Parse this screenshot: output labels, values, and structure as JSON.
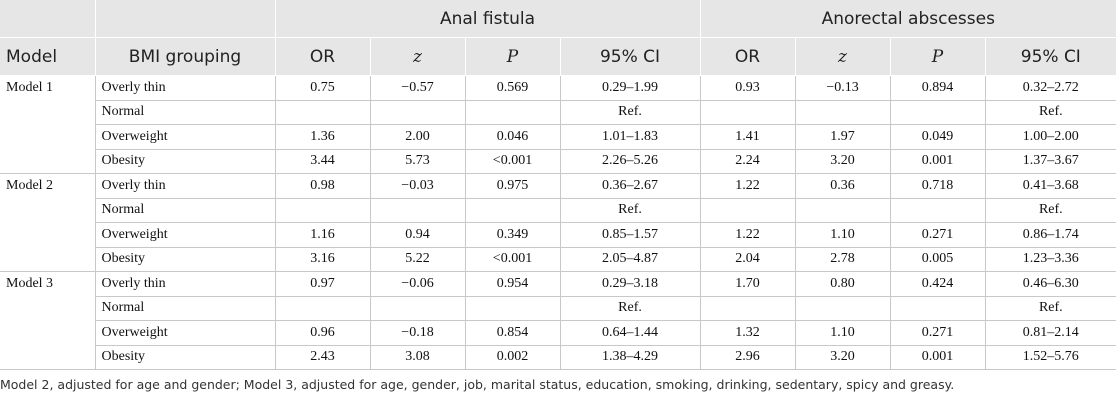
{
  "table": {
    "group_headers": [
      "Anal fistula",
      "Anorectal abscesses"
    ],
    "columns": [
      "Model",
      "BMI grouping",
      "OR",
      "z",
      "P",
      "95% CI",
      "OR",
      "z",
      "P",
      "95% CI"
    ],
    "models": [
      {
        "name": "Model 1",
        "rows": [
          {
            "group": "Overly thin",
            "fistula": [
              "0.75",
              "−0.57",
              "0.569",
              "0.29–1.99"
            ],
            "abscess": [
              "0.93",
              "−0.13",
              "0.894",
              "0.32–2.72"
            ]
          },
          {
            "group": "Normal",
            "fistula": [
              "Ref."
            ],
            "abscess": [
              "Ref."
            ]
          },
          {
            "group": "Overweight",
            "fistula": [
              "1.36",
              "2.00",
              "0.046",
              "1.01–1.83"
            ],
            "abscess": [
              "1.41",
              "1.97",
              "0.049",
              "1.00–2.00"
            ]
          },
          {
            "group": "Obesity",
            "fistula": [
              "3.44",
              "5.73",
              "<0.001",
              "2.26–5.26"
            ],
            "abscess": [
              "2.24",
              "3.20",
              "0.001",
              "1.37–3.67"
            ]
          }
        ]
      },
      {
        "name": "Model 2",
        "rows": [
          {
            "group": "Overly thin",
            "fistula": [
              "0.98",
              "−0.03",
              "0.975",
              "0.36–2.67"
            ],
            "abscess": [
              "1.22",
              "0.36",
              "0.718",
              "0.41–3.68"
            ]
          },
          {
            "group": "Normal",
            "fistula": [
              "Ref."
            ],
            "abscess": [
              "Ref."
            ]
          },
          {
            "group": "Overweight",
            "fistula": [
              "1.16",
              "0.94",
              "0.349",
              "0.85–1.57"
            ],
            "abscess": [
              "1.22",
              "1.10",
              "0.271",
              "0.86–1.74"
            ]
          },
          {
            "group": "Obesity",
            "fistula": [
              "3.16",
              "5.22",
              "<0.001",
              "2.05–4.87"
            ],
            "abscess": [
              "2.04",
              "2.78",
              "0.005",
              "1.23–3.36"
            ]
          }
        ]
      },
      {
        "name": "Model 3",
        "rows": [
          {
            "group": "Overly thin",
            "fistula": [
              "0.97",
              "−0.06",
              "0.954",
              "0.29–3.18"
            ],
            "abscess": [
              "1.70",
              "0.80",
              "0.424",
              "0.46–6.30"
            ]
          },
          {
            "group": "Normal",
            "fistula": [
              "Ref."
            ],
            "abscess": [
              "Ref."
            ]
          },
          {
            "group": "Overweight",
            "fistula": [
              "0.96",
              "−0.18",
              "0.854",
              "0.64–1.44"
            ],
            "abscess": [
              "1.32",
              "1.10",
              "0.271",
              "0.81–2.14"
            ]
          },
          {
            "group": "Obesity",
            "fistula": [
              "2.43",
              "3.08",
              "0.002",
              "1.38–4.29"
            ],
            "abscess": [
              "2.96",
              "3.20",
              "0.001",
              "1.52–5.76"
            ]
          }
        ]
      }
    ],
    "footnote": "Model 2, adjusted for age and gender; Model 3, adjusted for age, gender, job, marital status, education, smoking, drinking, sedentary, spicy and greasy."
  }
}
